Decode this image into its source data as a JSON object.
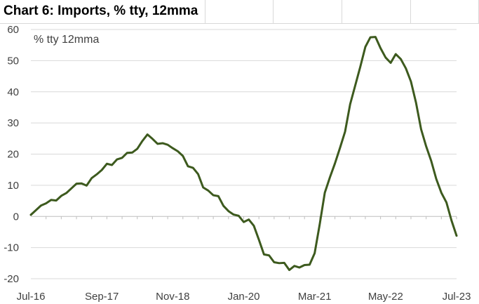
{
  "title": "Chart 6: Imports, % tty, 12mma",
  "chart_data": {
    "type": "line",
    "unit_label": "% tty 12mma",
    "xlabel": "",
    "ylabel": "",
    "ylim": [
      -20,
      60
    ],
    "yticks": [
      60,
      50,
      40,
      30,
      20,
      10,
      0,
      -10,
      -20
    ],
    "x_tick_labels": [
      "Jul-16",
      "Sep-17",
      "Nov-18",
      "Jan-20",
      "Mar-21",
      "May-22",
      "Jul-23"
    ],
    "grid": "horizontal",
    "colors": {
      "line": "#3d5a1e",
      "grid": "#d9d9d9",
      "axis": "#bfbfbf"
    },
    "series": [
      {
        "x_start": "Jul-16",
        "x_end": "Jul-23",
        "frequency": "monthly",
        "values": [
          0.5,
          2,
          3.5,
          4.2,
          5.3,
          5.1,
          6.6,
          7.5,
          9,
          10.5,
          10.6,
          9.9,
          12.3,
          13.5,
          14.9,
          16.9,
          16.5,
          18.3,
          18.8,
          20.4,
          20.5,
          21.7,
          24.2,
          26.3,
          24.9,
          23.3,
          23.5,
          23,
          21.9,
          20.9,
          19.4,
          16.1,
          15.6,
          13.6,
          9.3,
          8.3,
          6.8,
          6.5,
          3.4,
          1.7,
          0.6,
          0.2,
          -1.8,
          -1,
          -3,
          -7.5,
          -12.2,
          -12.5,
          -14.7,
          -15,
          -14.9,
          -17.2,
          -15.9,
          -16.4,
          -15.6,
          -15.5,
          -11.8,
          -2.5,
          7.6,
          12.5,
          17,
          22,
          27.2,
          36,
          42,
          48,
          54.4,
          57.5,
          57.6,
          54,
          51,
          49.3,
          52.1,
          50.5,
          47.5,
          43.3,
          36.5,
          28,
          22.5,
          17.8,
          12,
          7.6,
          4.5,
          -1.3,
          -6.2
        ]
      }
    ]
  }
}
